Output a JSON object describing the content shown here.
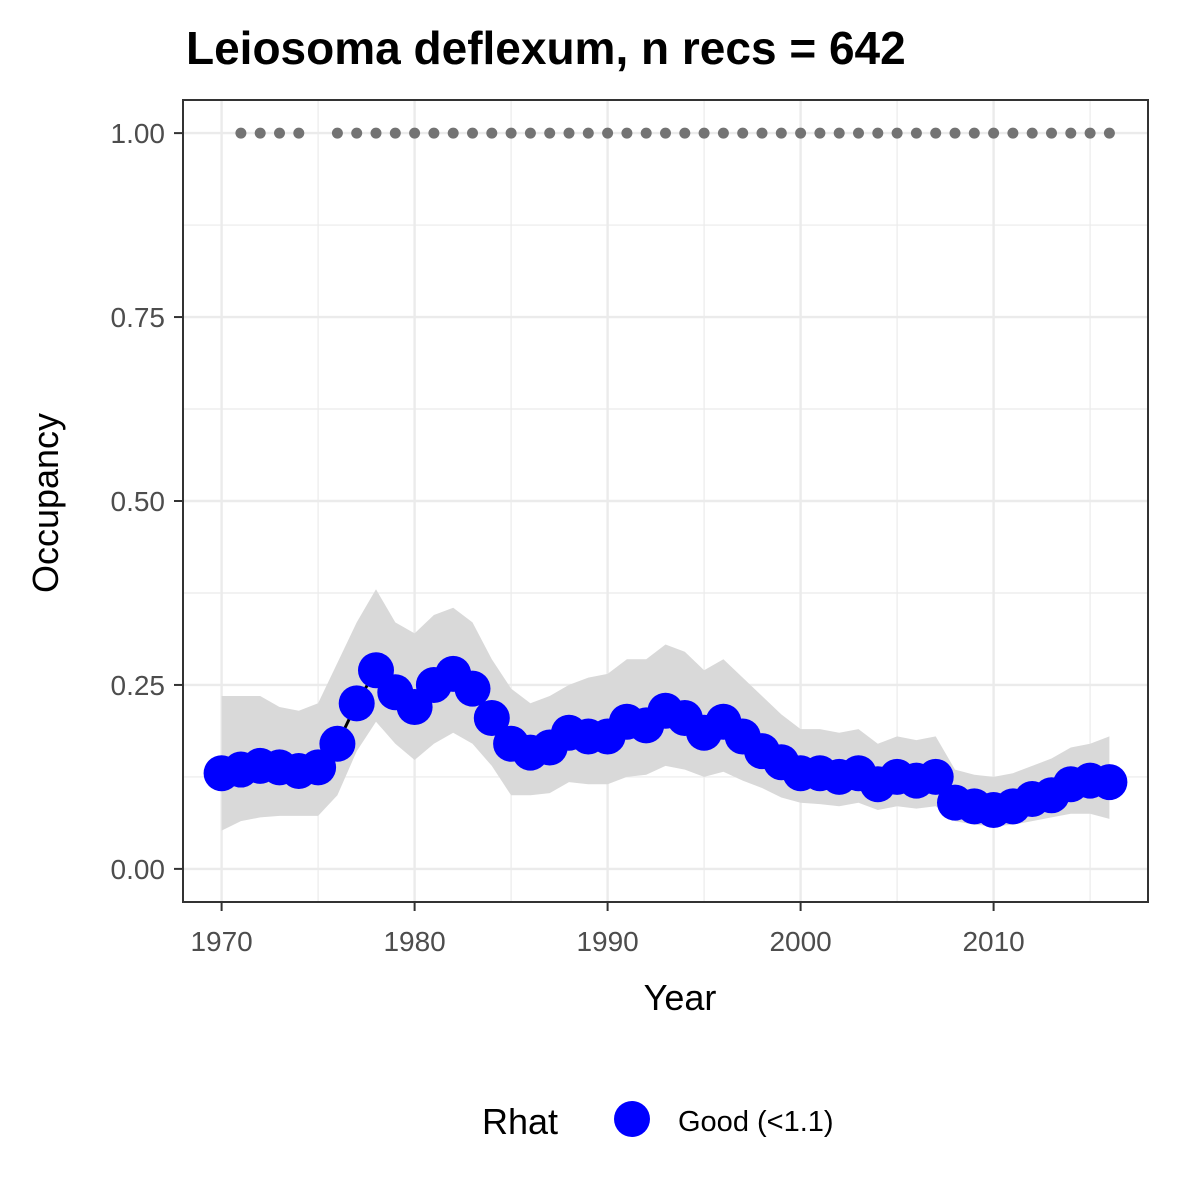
{
  "chart_data": {
    "type": "line",
    "title": "Leiosoma deflexum, n recs = 642",
    "xlabel": "Year",
    "ylabel": "Occupancy",
    "xlim": [
      1968,
      2018
    ],
    "ylim": [
      -0.045,
      1.045
    ],
    "x_ticks": [
      1970,
      1980,
      1990,
      2000,
      2010
    ],
    "x_tick_labels": [
      "1970",
      "1980",
      "1990",
      "2000",
      "2010"
    ],
    "y_ticks": [
      0,
      0.25,
      0.5,
      0.75,
      1.0
    ],
    "y_tick_labels": [
      "0.00",
      "0.25",
      "0.50",
      "0.75",
      "1.00"
    ],
    "grid": true,
    "legend_position": "bottom",
    "legend_title": "Rhat",
    "legend_entries": [
      {
        "label": "Good (<1.1)",
        "color": "#0000ff"
      }
    ],
    "colors": {
      "point": "#0000ff",
      "ribbon": "#d9d9d9",
      "line": "#000000",
      "record_dots": "#737373",
      "grid": "#ebebeb",
      "border": "#333333"
    },
    "series": [
      {
        "x": [
          1970,
          1971,
          1972,
          1973,
          1974,
          1975,
          1976,
          1977,
          1978,
          1979,
          1980,
          1981,
          1982,
          1983,
          1984,
          1985,
          1986,
          1987,
          1988,
          1989,
          1990,
          1991,
          1992,
          1993,
          1994,
          1995,
          1996,
          1997,
          1998,
          1999,
          2000,
          2001,
          2002,
          2003,
          2004,
          2005,
          2006,
          2007,
          2008,
          2009,
          2010,
          2011,
          2012,
          2013,
          2014,
          2015,
          2016
        ],
        "y": [
          0.13,
          0.135,
          0.14,
          0.138,
          0.133,
          0.138,
          0.17,
          0.225,
          0.27,
          0.24,
          0.22,
          0.25,
          0.265,
          0.245,
          0.205,
          0.17,
          0.158,
          0.165,
          0.185,
          0.18,
          0.18,
          0.2,
          0.195,
          0.215,
          0.205,
          0.185,
          0.2,
          0.18,
          0.16,
          0.145,
          0.13,
          0.13,
          0.125,
          0.13,
          0.115,
          0.125,
          0.12,
          0.125,
          0.09,
          0.085,
          0.08,
          0.085,
          0.095,
          0.1,
          0.115,
          0.12,
          0.118
        ],
        "lower": [
          0.052,
          0.065,
          0.07,
          0.072,
          0.072,
          0.072,
          0.1,
          0.16,
          0.2,
          0.17,
          0.148,
          0.17,
          0.185,
          0.17,
          0.14,
          0.1,
          0.1,
          0.103,
          0.118,
          0.115,
          0.115,
          0.125,
          0.128,
          0.14,
          0.135,
          0.125,
          0.132,
          0.12,
          0.11,
          0.097,
          0.09,
          0.088,
          0.085,
          0.09,
          0.08,
          0.085,
          0.082,
          0.085,
          0.065,
          0.06,
          0.058,
          0.06,
          0.065,
          0.07,
          0.075,
          0.075,
          0.068
        ],
        "upper": [
          0.235,
          0.235,
          0.235,
          0.22,
          0.215,
          0.225,
          0.28,
          0.335,
          0.38,
          0.335,
          0.32,
          0.345,
          0.355,
          0.335,
          0.285,
          0.245,
          0.225,
          0.235,
          0.25,
          0.26,
          0.265,
          0.285,
          0.285,
          0.305,
          0.295,
          0.27,
          0.285,
          0.26,
          0.235,
          0.21,
          0.19,
          0.19,
          0.185,
          0.19,
          0.17,
          0.18,
          0.175,
          0.18,
          0.135,
          0.128,
          0.125,
          0.13,
          0.14,
          0.15,
          0.165,
          0.17,
          0.18
        ]
      }
    ],
    "record_years": [
      1971,
      1972,
      1973,
      1974,
      1976,
      1977,
      1978,
      1979,
      1980,
      1981,
      1982,
      1983,
      1984,
      1985,
      1986,
      1987,
      1988,
      1989,
      1990,
      1991,
      1992,
      1993,
      1994,
      1995,
      1996,
      1997,
      1998,
      1999,
      2000,
      2001,
      2002,
      2003,
      2004,
      2005,
      2006,
      2007,
      2008,
      2009,
      2010,
      2011,
      2012,
      2013,
      2014,
      2015,
      2016
    ],
    "record_y": 1.0
  }
}
